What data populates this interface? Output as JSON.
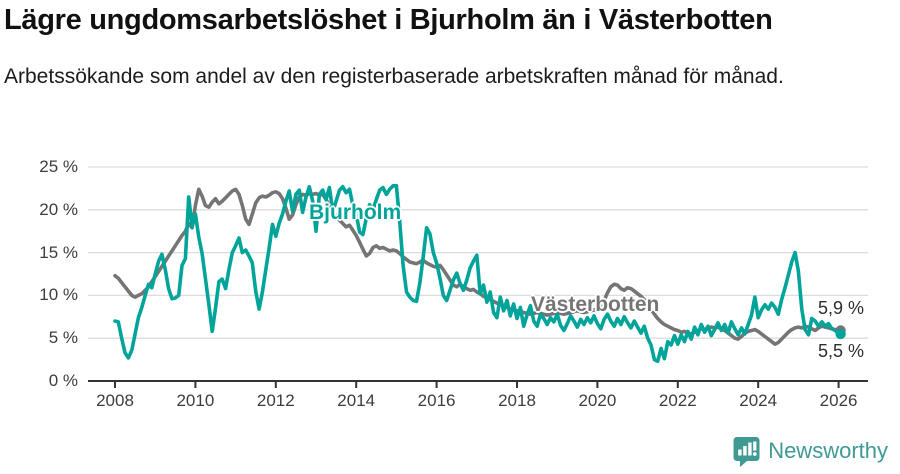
{
  "chart_data": {
    "type": "line",
    "title": "Lägre ungdomsarbetslöshet i Bjurholm än i Västerbotten",
    "subtitle": "Arbetssökande som andel av den registerbaserade arbetskraften månad för månad.",
    "unit": "%",
    "x_start_year": 2008,
    "months_per_point": 1,
    "ylim": [
      0,
      25
    ],
    "y_ticks": [
      0,
      5,
      10,
      15,
      20,
      25
    ],
    "y_tick_labels": [
      "0 %",
      "5 %",
      "10 %",
      "15 %",
      "20 %",
      "25 %"
    ],
    "x_ticks": [
      2008,
      2010,
      2012,
      2014,
      2016,
      2018,
      2020,
      2022,
      2024,
      2026
    ],
    "x_tick_labels": [
      "2008",
      "2010",
      "2012",
      "2014",
      "2016",
      "2018",
      "2020",
      "2022",
      "2024",
      "2026"
    ],
    "grid": "horizontal",
    "legend_position": "inline-labels",
    "series": [
      {
        "name": "Västerbotten",
        "inline_label": "Västerbotten",
        "color": "#757575",
        "last_value_label": "5,9 %",
        "values": [
          12.3,
          12.0,
          11.5,
          11.0,
          10.5,
          10.0,
          9.8,
          10.0,
          10.2,
          10.6,
          11.0,
          11.6,
          12.2,
          12.8,
          13.4,
          14.0,
          14.6,
          15.2,
          15.8,
          16.4,
          17.0,
          17.5,
          18.4,
          17.9,
          20.5,
          22.4,
          21.6,
          20.5,
          20.3,
          20.9,
          21.3,
          20.7,
          21.0,
          21.4,
          21.8,
          22.2,
          22.4,
          21.8,
          20.5,
          18.9,
          18.3,
          19.5,
          20.8,
          21.4,
          21.6,
          21.5,
          21.7,
          22.0,
          22.1,
          21.9,
          21.3,
          20.2,
          18.9,
          19.4,
          20.6,
          21.5,
          21.8,
          21.7,
          21.9,
          21.8,
          21.9,
          21.7,
          21.8,
          21.2,
          20.5,
          19.8,
          19.3,
          18.8,
          18.4,
          18.0,
          18.2,
          17.6,
          17.0,
          16.2,
          15.4,
          14.6,
          14.9,
          15.6,
          15.8,
          15.5,
          15.6,
          15.4,
          15.2,
          15.3,
          15.2,
          14.9,
          14.5,
          14.2,
          13.9,
          13.8,
          13.7,
          13.9,
          14.1,
          13.8,
          13.6,
          13.4,
          13.3,
          13.5,
          13.0,
          12.4,
          11.8,
          11.2,
          11.0,
          11.3,
          11.0,
          10.8,
          10.6,
          10.7,
          10.4,
          10.2,
          9.9,
          9.7,
          9.5,
          9.3,
          9.1,
          9.0,
          8.8,
          8.6,
          8.4,
          8.3,
          8.2,
          8.1,
          8.0,
          7.9,
          7.8,
          7.9,
          8.0,
          7.9,
          7.8,
          7.7,
          7.8,
          7.9,
          8.0,
          7.9,
          7.8,
          7.9,
          8.0,
          8.1,
          8.2,
          8.1,
          8.0,
          8.1,
          8.2,
          8.3,
          8.5,
          8.8,
          9.4,
          10.3,
          11.0,
          11.3,
          11.2,
          10.8,
          10.6,
          10.9,
          10.8,
          10.5,
          10.2,
          9.9,
          9.5,
          9.0,
          8.4,
          7.8,
          7.3,
          6.9,
          6.6,
          6.4,
          6.2,
          6.0,
          5.9,
          5.7,
          5.8,
          5.6,
          5.5,
          5.7,
          5.9,
          6.1,
          6.0,
          6.2,
          6.3,
          6.2,
          6.3,
          6.1,
          5.9,
          5.6,
          5.3,
          5.0,
          4.9,
          5.2,
          5.6,
          5.8,
          5.9,
          6.0,
          5.8,
          5.5,
          5.2,
          4.9,
          4.6,
          4.3,
          4.5,
          4.9,
          5.3,
          5.7,
          6.0,
          6.2,
          6.3,
          6.2,
          6.4,
          6.3,
          6.1,
          5.9,
          6.2,
          6.4,
          6.3,
          6.2,
          6.1,
          6.0,
          5.9
        ]
      },
      {
        "name": "Bjurholm",
        "inline_label": "Bjurholm",
        "color": "#00a49a",
        "last_value_label": "5,5 %",
        "values": [
          7.0,
          6.9,
          5.0,
          3.3,
          2.7,
          3.6,
          5.5,
          7.4,
          8.6,
          10.0,
          11.3,
          10.9,
          12.5,
          14.0,
          14.8,
          13.0,
          10.8,
          9.6,
          9.7,
          10.0,
          13.5,
          14.3,
          21.5,
          18.0,
          19.5,
          16.8,
          14.9,
          12.0,
          9.0,
          5.8,
          8.5,
          11.6,
          11.9,
          10.8,
          13.0,
          15.0,
          15.8,
          16.7,
          15.0,
          15.3,
          14.6,
          13.8,
          10.5,
          8.4,
          10.4,
          13.0,
          15.5,
          18.3,
          16.9,
          18.4,
          19.5,
          21.0,
          22.2,
          19.8,
          21.8,
          22.3,
          19.7,
          21.5,
          22.7,
          21.0,
          17.5,
          21.8,
          22.3,
          21.2,
          22.6,
          19.8,
          21.0,
          22.3,
          22.7,
          22.0,
          22.4,
          20.5,
          19.5,
          17.4,
          17.1,
          19.0,
          20.6,
          20.0,
          21.2,
          22.3,
          22.6,
          21.8,
          22.4,
          22.8,
          22.8,
          18.5,
          13.5,
          10.4,
          9.8,
          9.4,
          9.3,
          11.5,
          14.5,
          17.9,
          17.2,
          15.0,
          13.8,
          12.0,
          10.0,
          9.4,
          10.6,
          11.8,
          12.6,
          11.4,
          10.6,
          11.8,
          13.2,
          14.0,
          14.7,
          10.2,
          11.2,
          9.2,
          10.4,
          8.0,
          7.4,
          9.8,
          8.2,
          9.4,
          7.6,
          9.0,
          7.3,
          8.6,
          6.4,
          7.7,
          8.8,
          7.0,
          6.4,
          7.8,
          7.3,
          6.6,
          7.4,
          6.9,
          7.8,
          6.5,
          5.9,
          6.7,
          7.6,
          7.0,
          6.3,
          7.2,
          6.6,
          7.4,
          6.8,
          7.6,
          6.7,
          6.1,
          7.2,
          7.8,
          7.0,
          6.4,
          7.3,
          6.6,
          7.5,
          6.8,
          6.2,
          7.0,
          6.3,
          5.6,
          6.4,
          5.0,
          4.2,
          2.5,
          2.3,
          3.8,
          2.6,
          4.6,
          4.2,
          5.3,
          4.3,
          5.4,
          4.6,
          5.8,
          4.9,
          6.3,
          5.4,
          6.6,
          5.7,
          6.4,
          5.3,
          6.0,
          6.8,
          5.9,
          6.6,
          5.6,
          6.9,
          6.1,
          5.4,
          6.2,
          5.5,
          6.6,
          7.7,
          9.8,
          7.4,
          8.3,
          8.9,
          8.4,
          9.1,
          8.6,
          7.8,
          9.5,
          10.9,
          12.4,
          13.9,
          15.0,
          12.8,
          8.4,
          6.0,
          5.4,
          7.3,
          7.0,
          6.4,
          6.9,
          6.4,
          6.7,
          6.1,
          5.9,
          5.5
        ]
      }
    ],
    "end_labels": [
      {
        "series": "Västerbotten",
        "text": "5,9 %"
      },
      {
        "series": "Bjurholm",
        "text": "5,5 %"
      }
    ],
    "colors": {
      "grid": "#dddddd",
      "axis": "#333333",
      "tick_text": "#3d3d3d"
    }
  },
  "footer": {
    "brand": "Newsworthy",
    "brand_color": "#3f9a93"
  }
}
